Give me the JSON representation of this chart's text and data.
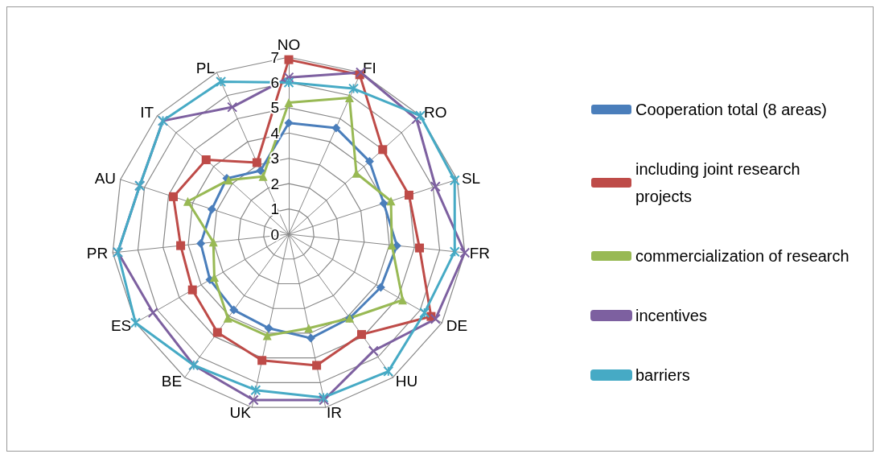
{
  "chart_data": {
    "type": "radar",
    "categories": [
      "NO",
      "FI",
      "RO",
      "SL",
      "FR",
      "DE",
      "HU",
      "IR",
      "UK",
      "BE",
      "ES",
      "PR",
      "AU",
      "IT",
      "PL"
    ],
    "ylim": [
      0,
      7
    ],
    "yticks": [
      0,
      1,
      2,
      3,
      4,
      5,
      6,
      7
    ],
    "grid": true,
    "legend": "right",
    "series": [
      {
        "name": "Cooperation total (8 areas)",
        "color": "#4a7ebb",
        "marker": "diamond",
        "values": [
          4.4,
          4.6,
          4.3,
          3.95,
          4.3,
          4.2,
          4.1,
          4.2,
          3.8,
          3.7,
          3.6,
          3.5,
          3.2,
          3.3,
          2.75
        ]
      },
      {
        "name": "including joint research projects",
        "color": "#be4b48",
        "marker": "square",
        "values": [
          6.9,
          6.9,
          5.0,
          5.0,
          5.2,
          6.5,
          4.9,
          5.3,
          5.1,
          4.8,
          4.4,
          4.3,
          4.8,
          4.4,
          3.1
        ]
      },
      {
        "name": "commercialization of research",
        "color": "#98b954",
        "marker": "triangle",
        "values": [
          5.2,
          5.9,
          3.6,
          4.25,
          4.1,
          5.2,
          4.1,
          3.8,
          4.1,
          4.1,
          3.4,
          3.0,
          4.2,
          3.2,
          2.5
        ]
      },
      {
        "name": "incentives",
        "color": "#7d60a0",
        "marker": "cross",
        "values": [
          6.2,
          7.0,
          6.8,
          6.1,
          7.0,
          6.7,
          5.7,
          6.7,
          6.7,
          6.4,
          6.2,
          6.8,
          6.2,
          6.7,
          5.5
        ]
      },
      {
        "name": "barriers",
        "color": "#46aac5",
        "marker": "star",
        "values": [
          6.0,
          6.3,
          7.0,
          6.9,
          6.6,
          6.2,
          6.7,
          6.6,
          6.3,
          6.4,
          7.0,
          6.8,
          6.2,
          6.7,
          6.6
        ]
      }
    ]
  }
}
